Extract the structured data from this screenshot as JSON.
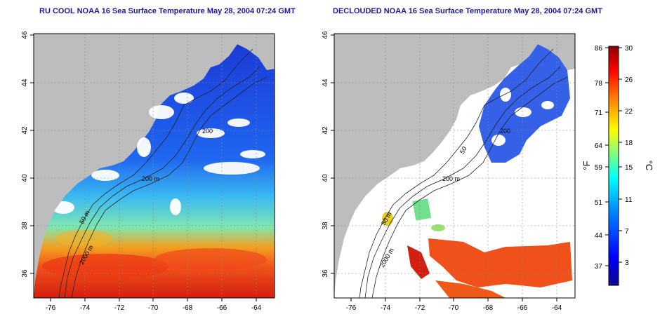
{
  "maps": {
    "left": {
      "title": "RU COOL NOAA 16 Sea Surface Temperature May 28, 2004 07:24 GMT",
      "contour_labels": [
        "200",
        "200 m",
        "50 m",
        "2000 m"
      ]
    },
    "right": {
      "title": "DECLOUDED NOAA 16 Sea Surface Temperature May 28, 2004 07:24 GMT",
      "contour_labels": [
        "200",
        "50",
        "200 m",
        "2000 m",
        "50 m"
      ]
    },
    "x_ticks": [
      "-76",
      "-74",
      "-72",
      "-70",
      "-68",
      "-66",
      "-64"
    ],
    "y_ticks": [
      "46",
      "44",
      "42",
      "40",
      "38",
      "36"
    ]
  },
  "colorbar": {
    "fahrenheit_label": "°F",
    "celsius_label": "°C",
    "fahrenheit_ticks": [
      "86",
      "78",
      "71",
      "64",
      "59",
      "51",
      "44",
      "37"
    ],
    "celsius_ticks": [
      "30",
      "26",
      "22",
      "18",
      "15",
      "11",
      "7",
      "3"
    ],
    "colors": [
      "#0a0a8c",
      "#0000ff",
      "#0080ff",
      "#00ffff",
      "#80ff80",
      "#ffff00",
      "#ff8000",
      "#ff0000",
      "#8c0000"
    ]
  },
  "palette": {
    "land": "#bdbdbd",
    "title": "#1a1aa0"
  }
}
